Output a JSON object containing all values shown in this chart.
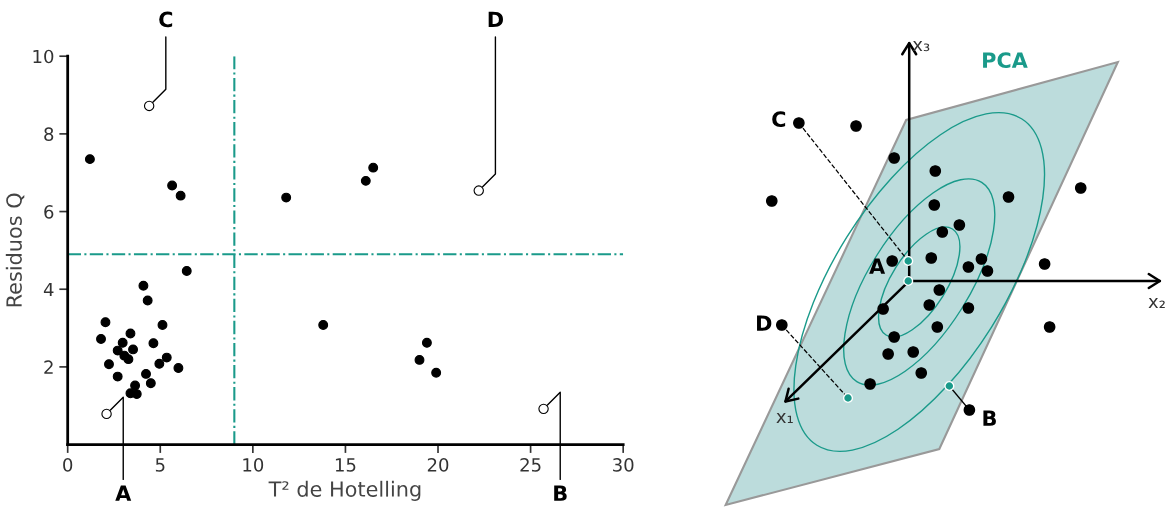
{
  "chart_data": [
    {
      "type": "scatter",
      "xlabel": "T² de Hotelling",
      "ylabel": "Residuos Q",
      "xlim": [
        0,
        30
      ],
      "ylim": [
        0,
        10
      ],
      "xticks": [
        0,
        5,
        10,
        15,
        20,
        25,
        30
      ],
      "yticks": [
        2,
        4,
        6,
        8,
        10
      ],
      "grid": false,
      "marker": "circle",
      "series": [
        {
          "color": "#000000",
          "x": [
            1.2,
            5.64,
            6.1,
            11.8,
            16.1,
            16.5,
            6.43,
            4.09,
            4.32,
            13.8,
            19.4,
            19.0,
            19.9,
            2.04,
            1.8,
            2.23,
            2.7,
            2.97,
            3.06,
            3.28,
            3.39,
            3.53,
            2.7,
            3.64,
            3.39,
            3.73,
            4.23,
            4.49,
            4.63,
            4.95,
            5.35,
            5.12,
            5.98
          ],
          "values": [
            7.35,
            6.67,
            6.41,
            6.36,
            6.79,
            7.13,
            4.47,
            4.09,
            3.71,
            3.08,
            2.62,
            2.18,
            1.85,
            3.15,
            2.72,
            2.07,
            2.42,
            2.62,
            2.29,
            2.2,
            2.86,
            2.45,
            1.75,
            1.52,
            1.32,
            1.3,
            1.82,
            1.58,
            2.61,
            2.08,
            2.24,
            3.08,
            1.97
          ]
        },
        {
          "type": "scatter",
          "color": "#ffffff",
          "x": [
            4.4,
            22.2,
            2.1,
            25.7
          ],
          "values": [
            8.72,
            6.54,
            0.79,
            0.92
          ]
        }
      ],
      "ref_lines": [
        {
          "axis": "x",
          "value": 9,
          "color": "#1a9a8a",
          "line_style": "dashdot"
        },
        {
          "axis": "y",
          "value": 4.9,
          "color": "#1a9a8a",
          "line_style": "dashdot"
        }
      ],
      "annotations": [
        {
          "text": "C",
          "x": 4.4,
          "y": 8.72
        },
        {
          "text": "D",
          "x": 22.2,
          "y": 6.54
        },
        {
          "text": "A",
          "x": 2.1,
          "y": 0.79
        },
        {
          "text": "B",
          "x": 25.7,
          "y": 0.92
        }
      ]
    },
    {
      "type": "other",
      "annotations": [
        "PCA",
        "A",
        "B",
        "C",
        "D",
        "x₁",
        "x₂",
        "x₃"
      ]
    }
  ]
}
